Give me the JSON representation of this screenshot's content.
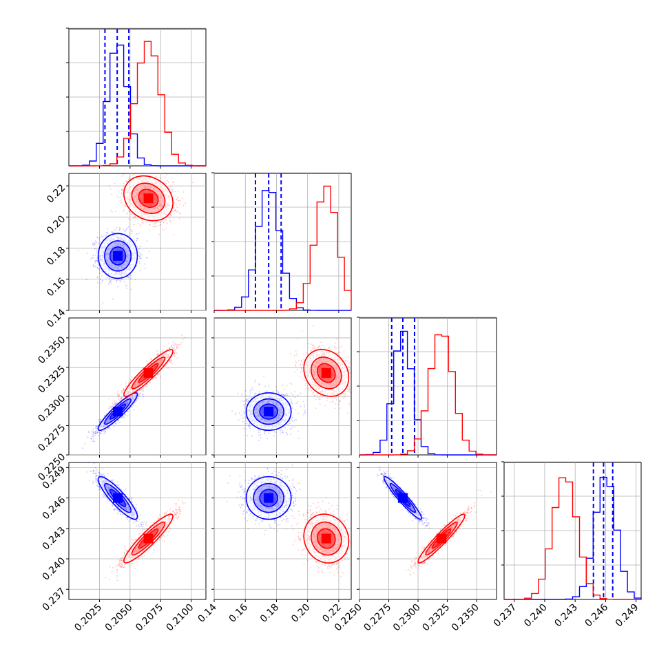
{
  "chart_data": {
    "type": "corner",
    "grid": true,
    "colors": {
      "blue": "#0000ff",
      "red": "#ff0000"
    },
    "parameters": [
      {
        "id": "p0",
        "range": [
          0.2,
          0.2112
        ],
        "ticks": [
          0.2025,
          0.205,
          0.2075,
          0.21
        ],
        "tick_labels": [
          "0.2025",
          "0.2050",
          "0.2075",
          "0.2100"
        ]
      },
      {
        "id": "p1",
        "range": [
          0.14,
          0.228
        ],
        "ticks": [
          0.14,
          0.16,
          0.18,
          0.2,
          0.22
        ],
        "tick_labels": [
          "0.14",
          "0.16",
          "0.18",
          "0.20",
          "0.22"
        ]
      },
      {
        "id": "p2",
        "range": [
          0.225,
          0.2367
        ],
        "ticks": [
          0.225,
          0.2275,
          0.23,
          0.2325,
          0.235
        ],
        "tick_labels": [
          "0.2250",
          "0.2275",
          "0.2300",
          "0.2325",
          "0.2350"
        ]
      },
      {
        "id": "p3",
        "range": [
          0.236,
          0.2495
        ],
        "ticks": [
          0.237,
          0.24,
          0.243,
          0.246,
          0.249
        ],
        "tick_labels": [
          "0.237",
          "0.240",
          "0.243",
          "0.246",
          "0.249"
        ]
      }
    ],
    "series": [
      {
        "color": "blue",
        "means": [
          0.204,
          0.175,
          0.2287,
          0.246
        ],
        "sigmas": [
          0.0008,
          0.0072,
          0.0008,
          0.00105
        ],
        "quantiles": [
          [
            0.20295,
            0.20395,
            0.2049
          ],
          [
            0.1665,
            0.175,
            0.183
          ],
          [
            0.22775,
            0.2287,
            0.2297
          ],
          [
            0.2448,
            0.2458,
            0.2467
          ]
        ],
        "correlations": {
          "0-1": 0.0,
          "0-2": 0.92,
          "0-3": -0.88,
          "1-2": 0.0,
          "1-3": 0.0,
          "2-3": -0.95
        }
      },
      {
        "color": "red",
        "means": [
          0.2065,
          0.212,
          0.232,
          0.242
        ],
        "sigmas": [
          0.001,
          0.0072,
          0.001,
          0.0012
        ],
        "correlations": {
          "0-1": -0.2,
          "0-2": 0.93,
          "0-3": 0.92,
          "1-2": -0.2,
          "1-3": -0.1,
          "2-3": 0.95
        }
      }
    ]
  }
}
